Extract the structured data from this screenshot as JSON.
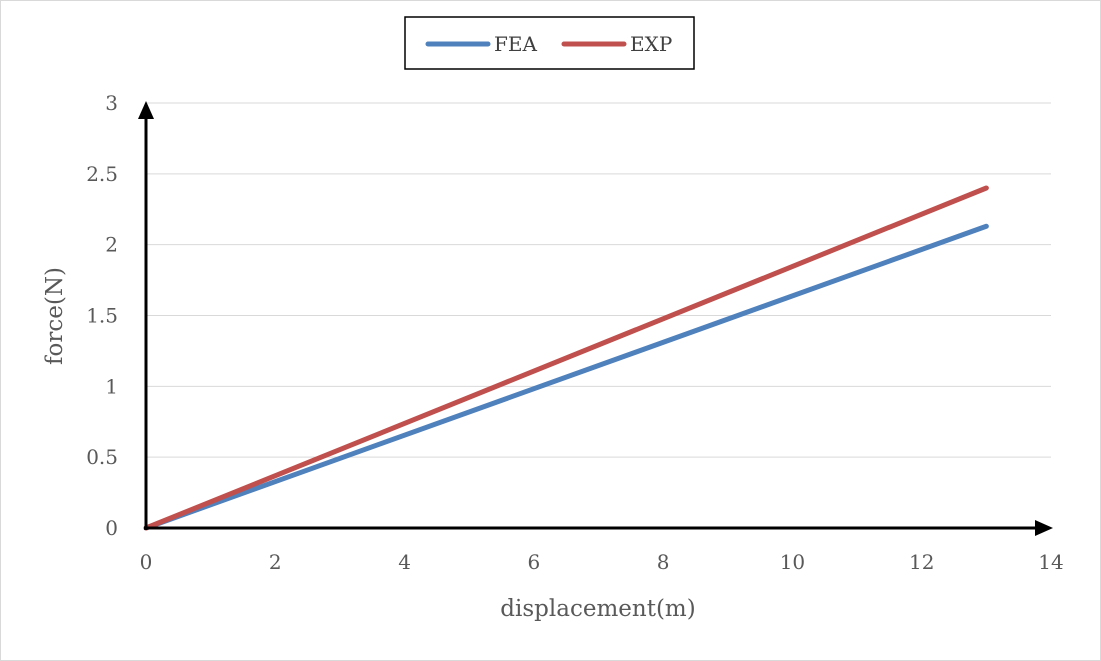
{
  "chart_data": {
    "type": "line",
    "title": "",
    "xlabel": "displacement(m)",
    "ylabel": "force(N)",
    "xlim": [
      0,
      14
    ],
    "ylim": [
      0,
      3
    ],
    "x_ticks": [
      0,
      2,
      4,
      6,
      8,
      10,
      12,
      14
    ],
    "y_ticks": [
      0,
      0.5,
      1,
      1.5,
      2,
      2.5,
      3
    ],
    "x_tick_labels": [
      "0",
      "2",
      "4",
      "6",
      "8",
      "10",
      "12",
      "14"
    ],
    "y_tick_labels": [
      "0",
      "0.5",
      "1",
      "1.5",
      "2",
      "2.5",
      "3"
    ],
    "grid": "horizontal",
    "legend_position": "top-center",
    "series": [
      {
        "name": "FEA",
        "color": "#4f81bd",
        "x": [
          0,
          13
        ],
        "y": [
          0,
          2.13
        ]
      },
      {
        "name": "EXP",
        "color": "#c0504d",
        "x": [
          0,
          13
        ],
        "y": [
          0,
          2.4
        ]
      }
    ]
  }
}
